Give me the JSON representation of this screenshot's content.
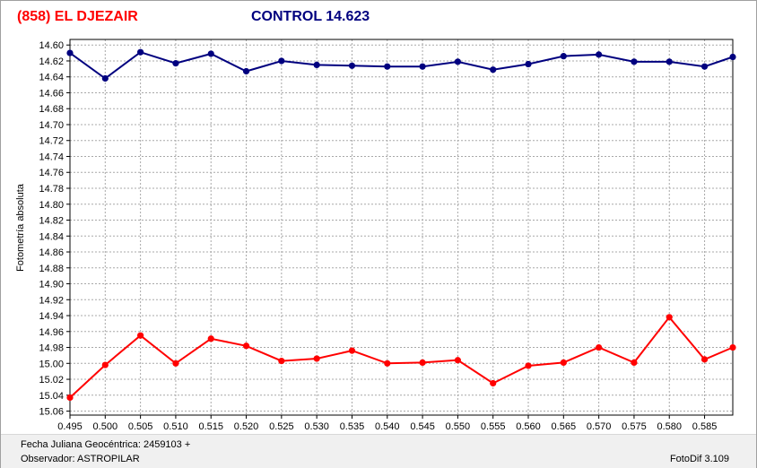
{
  "header": {
    "object_label": "(858) EL DJEZAIR",
    "control_label": "CONTROL 14.623"
  },
  "footer": {
    "julian_date_label": "Fecha Juliana Geocéntrica: 2459103 +",
    "observer_label": "Observador: ASTROPILAR",
    "app_version": "FotoDif 3.109"
  },
  "colors": {
    "object_series": "#ff0000",
    "control_series": "#00007f",
    "grid": "#a8a8a8"
  },
  "chart_data": {
    "type": "line",
    "ylabel": "Fotometría absoluta",
    "xlabel": "",
    "xlim": [
      0.495,
      0.589
    ],
    "ylim": [
      15.065,
      14.593
    ],
    "y_inverted": true,
    "grid": true,
    "x_ticks": [
      "0.495",
      "0.500",
      "0.505",
      "0.510",
      "0.515",
      "0.520",
      "0.525",
      "0.530",
      "0.535",
      "0.540",
      "0.545",
      "0.550",
      "0.555",
      "0.560",
      "0.565",
      "0.570",
      "0.575",
      "0.580",
      "0.585"
    ],
    "y_ticks": [
      "14.60",
      "14.62",
      "14.64",
      "14.66",
      "14.68",
      "14.70",
      "14.72",
      "14.74",
      "14.76",
      "14.78",
      "14.80",
      "14.82",
      "14.84",
      "14.86",
      "14.88",
      "14.90",
      "14.92",
      "14.94",
      "14.96",
      "14.98",
      "15.00",
      "15.02",
      "15.04",
      "15.06"
    ],
    "x": [
      0.495,
      0.5,
      0.505,
      0.51,
      0.515,
      0.52,
      0.525,
      0.53,
      0.535,
      0.54,
      0.545,
      0.55,
      0.555,
      0.56,
      0.565,
      0.57,
      0.575,
      0.58,
      0.585,
      0.589
    ],
    "series": [
      {
        "values": [
          14.61,
          14.642,
          14.609,
          14.623,
          14.611,
          14.633,
          14.62,
          14.625,
          14.626,
          14.627,
          14.627,
          14.621,
          14.631,
          14.624,
          14.614,
          14.612,
          14.621,
          14.621,
          14.627,
          14.615
        ]
      },
      {
        "values": [
          15.043,
          15.002,
          14.965,
          15.0,
          14.969,
          14.978,
          14.997,
          14.994,
          14.984,
          15.0,
          14.999,
          14.996,
          15.025,
          15.003,
          14.999,
          14.98,
          14.999,
          14.942,
          14.995,
          14.98
        ]
      }
    ]
  }
}
